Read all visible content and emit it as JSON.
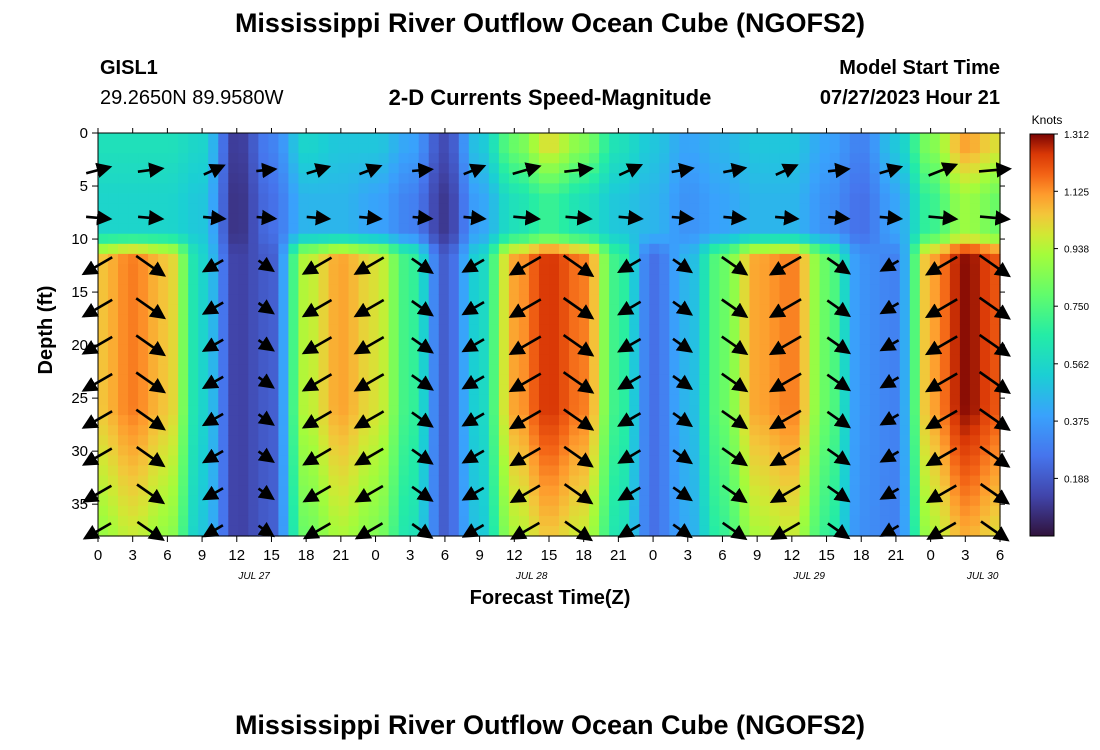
{
  "header": {
    "title": "Mississippi River Outflow Ocean Cube (NGOFS2)",
    "station_id": "GISL1",
    "station_coords": "29.2650N  89.9580W",
    "subtitle": "2-D Currents Speed-Magnitude",
    "model_start_label": "Model Start Time",
    "model_start_value": "07/27/2023 Hour 21"
  },
  "footer": {
    "title": "Mississippi River Outflow Ocean Cube (NGOFS2)"
  },
  "chart_data": {
    "type": "heatmap",
    "title": "2-D Currents Speed-Magnitude",
    "xlabel": "Forecast Time(Z)",
    "ylabel": "Depth (ft)",
    "x_tick_labels": [
      "0",
      "3",
      "6",
      "9",
      "12",
      "15",
      "18",
      "21",
      "0",
      "3",
      "6",
      "9",
      "12",
      "15",
      "18",
      "21",
      "0",
      "3",
      "6",
      "9",
      "12",
      "15",
      "18",
      "21",
      "0",
      "3",
      "6"
    ],
    "date_labels": [
      {
        "label": "JUL 27",
        "hour_index": 4.5
      },
      {
        "label": "JUL 28",
        "hour_index": 12.5
      },
      {
        "label": "JUL 29",
        "hour_index": 20.5
      },
      {
        "label": "JUL 30",
        "hour_index": 25.5
      }
    ],
    "xlim_hours": [
      0,
      78
    ],
    "y_ticks": [
      0,
      5,
      10,
      15,
      20,
      25,
      30,
      35
    ],
    "ylim": [
      0,
      38
    ],
    "y_inverted": true,
    "colorbar": {
      "label": "Knots",
      "ticks": [
        "1.312",
        "1.125",
        "0.938",
        "0.750",
        "0.562",
        "0.375",
        "0.188"
      ],
      "vmin": 0.0,
      "vmax": 1.312
    },
    "lower_layer_speed_by_hour": [
      [
        0,
        1.05
      ],
      [
        3,
        1.15
      ],
      [
        6,
        1.05
      ],
      [
        9,
        0.55
      ],
      [
        12,
        0.12
      ],
      [
        15,
        0.2
      ],
      [
        18,
        0.95
      ],
      [
        21,
        1.1
      ],
      [
        24,
        1.0
      ],
      [
        27,
        0.7
      ],
      [
        30,
        0.2
      ],
      [
        33,
        0.55
      ],
      [
        36,
        1.1
      ],
      [
        39,
        1.25
      ],
      [
        42,
        1.15
      ],
      [
        45,
        0.7
      ],
      [
        48,
        0.25
      ],
      [
        51,
        0.45
      ],
      [
        54,
        0.8
      ],
      [
        57,
        1.1
      ],
      [
        60,
        1.15
      ],
      [
        63,
        0.8
      ],
      [
        66,
        0.35
      ],
      [
        69,
        0.3
      ],
      [
        72,
        1.1
      ],
      [
        75,
        1.3
      ],
      [
        78,
        1.2
      ]
    ],
    "upper_layer_speed_by_hour": [
      [
        0,
        0.55
      ],
      [
        3,
        0.55
      ],
      [
        6,
        0.55
      ],
      [
        9,
        0.5
      ],
      [
        12,
        0.08
      ],
      [
        15,
        0.25
      ],
      [
        18,
        0.45
      ],
      [
        21,
        0.45
      ],
      [
        24,
        0.4
      ],
      [
        27,
        0.3
      ],
      [
        30,
        0.1
      ],
      [
        33,
        0.4
      ],
      [
        36,
        0.6
      ],
      [
        39,
        0.7
      ],
      [
        42,
        0.6
      ],
      [
        45,
        0.5
      ],
      [
        48,
        0.45
      ],
      [
        51,
        0.35
      ],
      [
        54,
        0.4
      ],
      [
        57,
        0.45
      ],
      [
        60,
        0.45
      ],
      [
        63,
        0.35
      ],
      [
        66,
        0.25
      ],
      [
        69,
        0.4
      ],
      [
        72,
        0.7
      ],
      [
        75,
        0.9
      ],
      [
        78,
        0.8
      ]
    ],
    "surface_layer_speed_by_hour": [
      [
        0,
        0.6
      ],
      [
        3,
        0.6
      ],
      [
        6,
        0.6
      ],
      [
        9,
        0.55
      ],
      [
        12,
        0.1
      ],
      [
        15,
        0.3
      ],
      [
        18,
        0.55
      ],
      [
        21,
        0.5
      ],
      [
        24,
        0.5
      ],
      [
        27,
        0.4
      ],
      [
        30,
        0.15
      ],
      [
        33,
        0.5
      ],
      [
        36,
        0.8
      ],
      [
        39,
        1.0
      ],
      [
        42,
        0.85
      ],
      [
        45,
        0.6
      ],
      [
        48,
        0.5
      ],
      [
        51,
        0.4
      ],
      [
        54,
        0.45
      ],
      [
        57,
        0.5
      ],
      [
        60,
        0.5
      ],
      [
        63,
        0.4
      ],
      [
        66,
        0.3
      ],
      [
        69,
        0.5
      ],
      [
        72,
        0.85
      ],
      [
        75,
        1.1
      ],
      [
        78,
        1.0
      ]
    ],
    "vector_depths": [
      3.5,
      8,
      12.5,
      16.5,
      20,
      23.5,
      27,
      30.5,
      34,
      37.5
    ],
    "vector_hours": [
      0,
      4.5,
      10,
      14.5,
      19,
      23.5,
      28,
      32.5,
      37,
      41.5,
      46,
      50.5,
      55,
      59.5,
      64,
      68.5,
      73,
      77.5
    ]
  }
}
